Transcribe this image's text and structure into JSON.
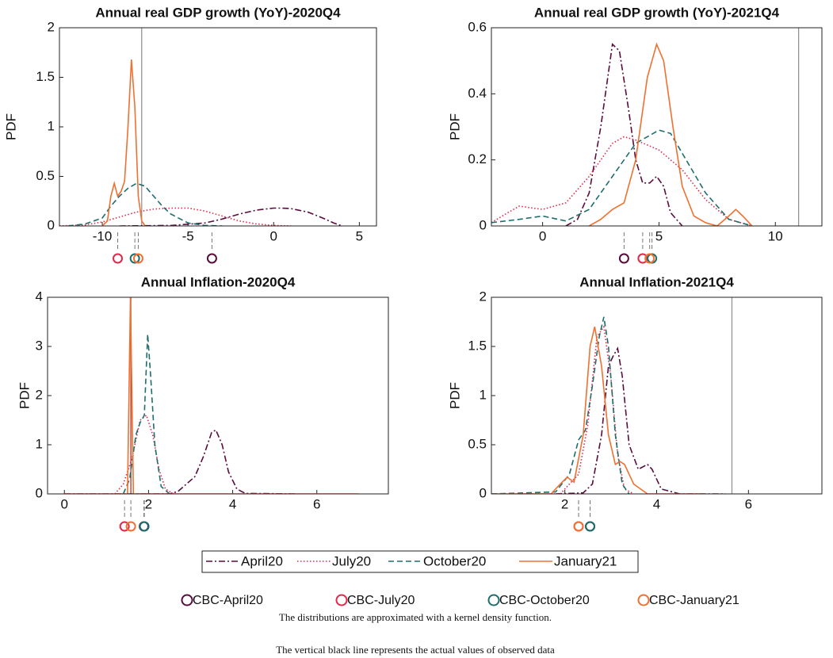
{
  "chart_data": [
    {
      "type": "line",
      "title": "Annual real GDP growth (YoY)-2020Q4",
      "y_label": "PDF",
      "xlim": [
        -12.5,
        6
      ],
      "ylim": [
        0,
        2
      ],
      "xticks": [
        -10,
        -5,
        0,
        5
      ],
      "yticks": [
        0,
        0.5,
        1,
        1.5,
        2
      ],
      "observed": -7.7,
      "observed_color": "#8c8c8c",
      "series": [
        {
          "x": [
            -9,
            -6,
            -4,
            -3,
            -2,
            -1,
            0,
            0.5,
            1,
            2,
            3,
            3.5,
            4
          ],
          "values": [
            0,
            0.005,
            0.03,
            0.07,
            0.12,
            0.16,
            0.18,
            0.18,
            0.175,
            0.14,
            0.07,
            0.03,
            0
          ]
        },
        {
          "x": [
            -12.5,
            -11,
            -10,
            -9,
            -8,
            -7,
            -6,
            -5,
            -4,
            -3,
            -2,
            -1,
            0,
            1
          ],
          "values": [
            0,
            0.01,
            0.04,
            0.09,
            0.14,
            0.17,
            0.18,
            0.18,
            0.15,
            0.1,
            0.05,
            0.02,
            0.005,
            0
          ]
        },
        {
          "x": [
            -12,
            -11,
            -10,
            -9.5,
            -9,
            -8.5,
            -8,
            -7.5,
            -7,
            -6.5,
            -6,
            -5,
            -4,
            -3
          ],
          "values": [
            0,
            0.02,
            0.08,
            0.2,
            0.3,
            0.38,
            0.43,
            0.4,
            0.3,
            0.2,
            0.12,
            0.03,
            0.005,
            0
          ]
        },
        {
          "x": [
            -10,
            -9.7,
            -9.5,
            -9.3,
            -9.1,
            -8.9,
            -8.7,
            -8.5,
            -8.3,
            -8.1,
            -7.9,
            -7.7,
            -7.5
          ],
          "values": [
            0,
            0.05,
            0.3,
            0.43,
            0.3,
            0.35,
            0.45,
            1.0,
            1.68,
            1.2,
            0.3,
            0.05,
            0
          ]
        }
      ],
      "cbc_x": [
        -3.6,
        -9.1,
        -8.1,
        -7.9
      ]
    },
    {
      "type": "line",
      "title": "Annual real GDP growth (YoY)-2021Q4",
      "y_label": "PDF",
      "xlim": [
        -2.2,
        12
      ],
      "ylim": [
        0,
        0.6
      ],
      "xticks": [
        0,
        5,
        10
      ],
      "yticks": [
        0,
        0.2,
        0.4,
        0.6
      ],
      "observed": 11,
      "observed_color": "#8c8c8c",
      "series": [
        {
          "x": [
            1,
            1.5,
            2,
            2.5,
            3,
            3.3,
            3.7,
            4,
            4.3,
            4.6,
            4.9,
            5.2,
            5.5,
            6
          ],
          "values": [
            0,
            0.02,
            0.1,
            0.3,
            0.55,
            0.53,
            0.35,
            0.2,
            0.13,
            0.13,
            0.15,
            0.12,
            0.04,
            0
          ]
        },
        {
          "x": [
            -2.2,
            -1.5,
            -1,
            0,
            1,
            2,
            3,
            3.5,
            4,
            5,
            6,
            7,
            8,
            9
          ],
          "values": [
            0.01,
            0.04,
            0.06,
            0.05,
            0.07,
            0.15,
            0.25,
            0.27,
            0.26,
            0.23,
            0.17,
            0.08,
            0.02,
            0
          ]
        },
        {
          "x": [
            -2.2,
            -1,
            0,
            1,
            2,
            3,
            4,
            5,
            5.5,
            6,
            7,
            8,
            9
          ],
          "values": [
            0.01,
            0.02,
            0.03,
            0.015,
            0.05,
            0.15,
            0.25,
            0.29,
            0.28,
            0.22,
            0.1,
            0.02,
            0
          ]
        },
        {
          "x": [
            2,
            2.5,
            3,
            3.5,
            4,
            4.5,
            4.9,
            5.2,
            5.6,
            6,
            6.5,
            7,
            7.5,
            8,
            8.3,
            8.6,
            9
          ],
          "values": [
            0,
            0.02,
            0.05,
            0.07,
            0.2,
            0.45,
            0.55,
            0.5,
            0.3,
            0.12,
            0.03,
            0.01,
            0,
            0.03,
            0.05,
            0.03,
            0
          ]
        }
      ],
      "cbc_x": [
        3.5,
        4.3,
        4.7,
        4.6
      ]
    },
    {
      "type": "line",
      "title": "Annual Inflation-2020Q4",
      "y_label": "PDF",
      "xlim": [
        -0.4,
        7.7
      ],
      "ylim": [
        0,
        4
      ],
      "xticks": [
        0,
        2,
        4,
        6
      ],
      "yticks": [
        0,
        1,
        2,
        3,
        4
      ],
      "observed": 1.58,
      "observed_color": "#9b2a1a",
      "series": [
        {
          "x": [
            0,
            2.5,
            2.7,
            2.9,
            3.1,
            3.3,
            3.5,
            3.6,
            3.75,
            3.9,
            4.1,
            4.3,
            5.5
          ],
          "values": [
            0,
            0,
            0.05,
            0.2,
            0.35,
            0.75,
            1.25,
            1.3,
            1.0,
            0.45,
            0.1,
            0.01,
            0
          ]
        },
        {
          "x": [
            1.2,
            1.4,
            1.6,
            1.8,
            1.95,
            2.1,
            2.25,
            2.4,
            2.6
          ],
          "values": [
            0,
            0.2,
            0.7,
            1.5,
            1.6,
            1.2,
            0.5,
            0.1,
            0
          ]
        },
        {
          "x": [
            1.4,
            1.55,
            1.7,
            1.8,
            1.9,
            1.98,
            2.05,
            2.15,
            2.3,
            2.5
          ],
          "values": [
            0,
            0.3,
            1.2,
            1.45,
            1.6,
            3.25,
            2.4,
            1.0,
            0.15,
            0
          ]
        },
        {
          "x": [
            0,
            1.5,
            1.57,
            1.64,
            7
          ],
          "values": [
            0,
            0,
            4,
            0,
            0
          ]
        }
      ],
      "cbc_x": [
        1.89,
        1.43,
        1.9,
        1.58
      ]
    },
    {
      "type": "line",
      "title": "Annual Inflation-2021Q4",
      "y_label": "PDF",
      "xlim": [
        0.4,
        7.6
      ],
      "ylim": [
        0,
        2
      ],
      "xticks": [
        2,
        4,
        6
      ],
      "yticks": [
        0,
        0.5,
        1,
        1.5,
        2
      ],
      "observed": 5.64,
      "observed_color": "#8c8c8c",
      "series": [
        {
          "x": [
            1.8,
            2.4,
            2.6,
            2.8,
            2.95,
            3.05,
            3.15,
            3.25,
            3.4,
            3.6,
            3.8,
            3.9,
            4.1,
            4.5,
            5.5
          ],
          "values": [
            0,
            0.01,
            0.1,
            0.6,
            1.3,
            1.4,
            1.48,
            1.2,
            0.5,
            0.25,
            0.3,
            0.25,
            0.05,
            0,
            0
          ]
        },
        {
          "x": [
            1,
            1.9,
            2.1,
            2.3,
            2.5,
            2.7,
            2.85,
            3.0,
            3.15,
            3.3,
            3.5
          ],
          "values": [
            0,
            0,
            0.1,
            0.2,
            0.7,
            1.6,
            1.7,
            1.2,
            0.4,
            0.05,
            0
          ]
        },
        {
          "x": [
            0.4,
            1.8,
            2.1,
            2.3,
            2.45,
            2.6,
            2.75,
            2.85,
            2.95,
            3.1,
            3.25,
            3.4
          ],
          "values": [
            0,
            0.02,
            0.2,
            0.55,
            0.65,
            1.1,
            1.6,
            1.8,
            1.5,
            0.6,
            0.1,
            0
          ]
        },
        {
          "x": [
            0.4,
            1.7,
            1.9,
            2.05,
            2.2,
            2.4,
            2.55,
            2.65,
            2.8,
            2.95,
            3.1,
            3.2,
            3.3,
            3.5,
            3.8,
            5
          ],
          "values": [
            0,
            0,
            0.1,
            0.17,
            0.12,
            0.6,
            1.5,
            1.7,
            1.3,
            0.6,
            0.3,
            0.33,
            0.3,
            0.1,
            0,
            0
          ]
        }
      ],
      "cbc_x": [
        2.55,
        2.3,
        2.55,
        2.3
      ]
    }
  ],
  "series_legend": [
    {
      "name": "April20",
      "color": "#5a0c3c",
      "dash": "dashdot"
    },
    {
      "name": "July20",
      "color": "#e0284a",
      "dash": "dotted"
    },
    {
      "name": "October20",
      "color": "#1e6e6e",
      "dash": "dashed"
    },
    {
      "name": "January21",
      "color": "#f07030",
      "dash": "solid"
    }
  ],
  "cbc_legend": [
    {
      "name": "CBC-April20",
      "color": "#5a0c3c"
    },
    {
      "name": "CBC-July20",
      "color": "#e0284a"
    },
    {
      "name": "CBC-October20",
      "color": "#1e6e6e"
    },
    {
      "name": "CBC-January21",
      "color": "#f07030"
    }
  ],
  "notes": [
    "The distributions are approximated with a kernel density function.",
    "The vertical black line represents the actual values of observed data"
  ]
}
